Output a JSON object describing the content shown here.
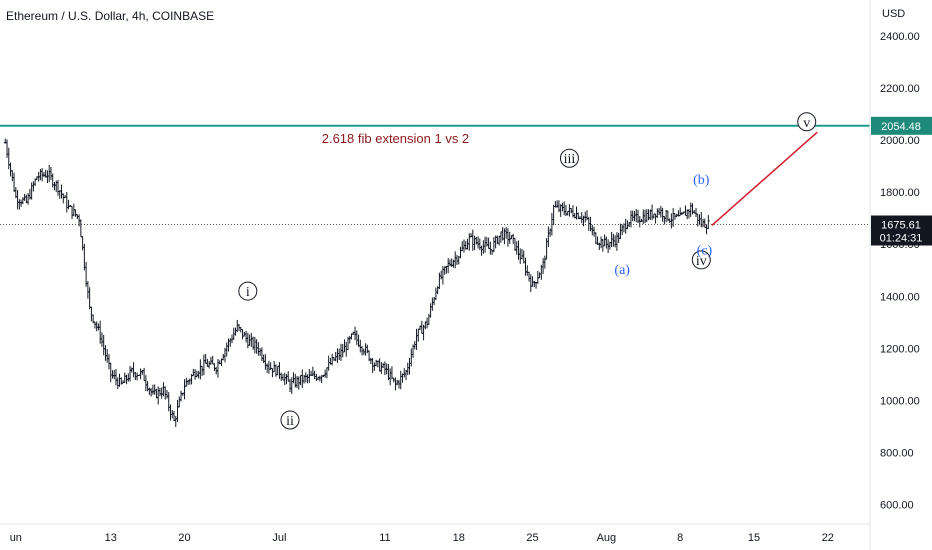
{
  "header": {
    "title": "Ethereum / U.S. Dollar, 4h, COINBASE"
  },
  "price_axis": {
    "currency_label": "USD"
  },
  "colors": {
    "candle": "#131722",
    "fib_line": "#1e9a8a",
    "fib_label_bg": "#1e8a7a",
    "projection": "#d11a2a",
    "wave_black": "#131722",
    "wave_blue": "#2962ff",
    "current_price_bg": "#131722",
    "annotation_text": "#8b1a1a"
  },
  "chart_data": {
    "type": "candlestick",
    "title": "Ethereum / U.S. Dollar, 4h, COINBASE",
    "ylim": [
      500,
      2550
    ],
    "y_ticks": [
      600,
      800,
      1000,
      1200,
      1400,
      1600,
      1800,
      2000,
      2200,
      2400
    ],
    "y_tick_labels": [
      "600.00",
      "800.00",
      "1000.00",
      "1200.00",
      "1400.00",
      "1600.00",
      "1800.00",
      "2000.00",
      "2200.00",
      "2400.00"
    ],
    "x_tick_labels": [
      "un",
      "13",
      "20",
      "Jul",
      "11",
      "18",
      "25",
      "Aug",
      "8",
      "15",
      "22"
    ],
    "x_tick_positions": [
      3,
      12,
      19,
      28,
      38,
      45,
      52,
      59,
      66,
      73,
      80
    ],
    "x_range": [
      1.5,
      84
    ],
    "price_path": [
      [
        2,
        1990
      ],
      [
        3,
        1780
      ],
      [
        4,
        1760
      ],
      [
        5,
        1860
      ],
      [
        6,
        1870
      ],
      [
        7,
        1820
      ],
      [
        8,
        1740
      ],
      [
        9,
        1700
      ],
      [
        10,
        1350
      ],
      [
        11,
        1250
      ],
      [
        12,
        1100
      ],
      [
        13,
        1060
      ],
      [
        14,
        1110
      ],
      [
        15,
        1100
      ],
      [
        16,
        1020
      ],
      [
        17,
        1040
      ],
      [
        18,
        920
      ],
      [
        19,
        1060
      ],
      [
        20,
        1110
      ],
      [
        21,
        1140
      ],
      [
        22,
        1130
      ],
      [
        23,
        1210
      ],
      [
        24,
        1280
      ],
      [
        25,
        1230
      ],
      [
        26,
        1200
      ],
      [
        27,
        1130
      ],
      [
        28,
        1110
      ],
      [
        29,
        1060
      ],
      [
        30,
        1080
      ],
      [
        31,
        1090
      ],
      [
        32,
        1100
      ],
      [
        33,
        1150
      ],
      [
        34,
        1190
      ],
      [
        35,
        1250
      ],
      [
        36,
        1200
      ],
      [
        37,
        1140
      ],
      [
        38,
        1120
      ],
      [
        39,
        1060
      ],
      [
        40,
        1110
      ],
      [
        41,
        1250
      ],
      [
        42,
        1300
      ],
      [
        43,
        1450
      ],
      [
        44,
        1520
      ],
      [
        45,
        1560
      ],
      [
        46,
        1620
      ],
      [
        47,
        1600
      ],
      [
        48,
        1580
      ],
      [
        49,
        1640
      ],
      [
        50,
        1620
      ],
      [
        51,
        1540
      ],
      [
        52,
        1440
      ],
      [
        53,
        1520
      ],
      [
        54,
        1740
      ],
      [
        55,
        1730
      ],
      [
        56,
        1720
      ],
      [
        57,
        1700
      ],
      [
        58,
        1620
      ],
      [
        59,
        1600
      ],
      [
        60,
        1620
      ],
      [
        61,
        1690
      ],
      [
        62,
        1700
      ],
      [
        63,
        1710
      ],
      [
        64,
        1730
      ],
      [
        65,
        1700
      ],
      [
        66,
        1700
      ],
      [
        67,
        1740
      ],
      [
        68,
        1680
      ],
      [
        68.8,
        1675.61
      ]
    ],
    "fib_level": {
      "value": 2054.48,
      "label": "2054.48",
      "annotation": "2.618 fib extension 1 vs 2"
    },
    "current_price": {
      "value": 1675.61,
      "label": "1675.61",
      "countdown": "01:24:31"
    },
    "projection_line": {
      "from": [
        69,
        1672
      ],
      "to": [
        79,
        2030
      ]
    },
    "wave_labels": [
      {
        "text": "i",
        "style": "circle",
        "color": "black",
        "x": 25,
        "y": 1420
      },
      {
        "text": "ii",
        "style": "circle",
        "color": "black",
        "x": 29,
        "y": 925
      },
      {
        "text": "iii",
        "style": "circle",
        "color": "black",
        "x": 55.5,
        "y": 1930
      },
      {
        "text": "iv",
        "style": "circle",
        "color": "black",
        "x": 68,
        "y": 1540
      },
      {
        "text": "v",
        "style": "circle",
        "color": "black",
        "x": 78,
        "y": 2070
      },
      {
        "text": "(a)",
        "style": "plain",
        "color": "blue",
        "x": 60.5,
        "y": 1505
      },
      {
        "text": "(b)",
        "style": "plain",
        "color": "blue",
        "x": 68,
        "y": 1850
      },
      {
        "text": "(c)",
        "style": "plain",
        "color": "blue",
        "x": 68.3,
        "y": 1580
      }
    ]
  }
}
